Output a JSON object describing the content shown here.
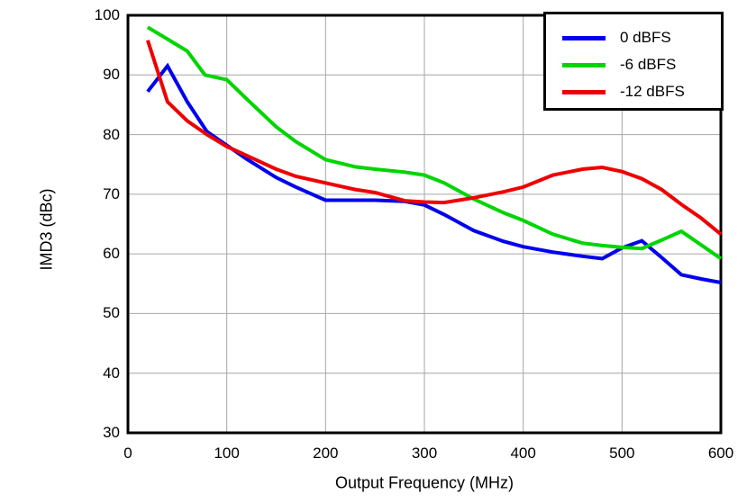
{
  "chart_data": {
    "type": "line",
    "title": "",
    "xlabel": "Output Frequency (MHz)",
    "ylabel": "IMD3 (dBc)",
    "xlim": [
      0,
      600
    ],
    "ylim": [
      30,
      100
    ],
    "x_ticks": [
      0,
      100,
      200,
      300,
      400,
      500,
      600
    ],
    "y_ticks": [
      30,
      40,
      50,
      60,
      70,
      80,
      90,
      100
    ],
    "grid": true,
    "legend_position": "top-right",
    "series": [
      {
        "name": "0 dBFS",
        "color": "#0000EE",
        "points": [
          [
            20,
            87.2
          ],
          [
            40,
            91.5
          ],
          [
            60,
            85.5
          ],
          [
            80,
            80.5
          ],
          [
            100,
            78.2
          ],
          [
            120,
            75.9
          ],
          [
            150,
            72.8
          ],
          [
            170,
            71.2
          ],
          [
            200,
            69.0
          ],
          [
            230,
            69.0
          ],
          [
            250,
            69.0
          ],
          [
            280,
            68.8
          ],
          [
            300,
            68.2
          ],
          [
            320,
            66.6
          ],
          [
            350,
            63.9
          ],
          [
            380,
            62.1
          ],
          [
            400,
            61.2
          ],
          [
            430,
            60.3
          ],
          [
            460,
            59.6
          ],
          [
            480,
            59.2
          ],
          [
            500,
            61.0
          ],
          [
            520,
            62.2
          ],
          [
            540,
            59.4
          ],
          [
            560,
            56.5
          ],
          [
            580,
            55.8
          ],
          [
            600,
            55.2
          ]
        ]
      },
      {
        "name": "-6 dBFS",
        "color": "#00D500",
        "points": [
          [
            20,
            98.0
          ],
          [
            40,
            96.0
          ],
          [
            60,
            94.0
          ],
          [
            78,
            90.0
          ],
          [
            100,
            89.2
          ],
          [
            120,
            86.0
          ],
          [
            150,
            81.3
          ],
          [
            170,
            78.8
          ],
          [
            200,
            75.8
          ],
          [
            230,
            74.6
          ],
          [
            250,
            74.2
          ],
          [
            280,
            73.7
          ],
          [
            300,
            73.2
          ],
          [
            320,
            71.9
          ],
          [
            350,
            69.2
          ],
          [
            380,
            66.9
          ],
          [
            400,
            65.6
          ],
          [
            430,
            63.3
          ],
          [
            460,
            61.8
          ],
          [
            480,
            61.4
          ],
          [
            500,
            61.1
          ],
          [
            520,
            60.9
          ],
          [
            540,
            62.3
          ],
          [
            560,
            63.8
          ],
          [
            580,
            61.5
          ],
          [
            600,
            59.2
          ]
        ]
      },
      {
        "name": "-12 dBFS",
        "color": "#EE0000",
        "points": [
          [
            20,
            95.8
          ],
          [
            40,
            85.5
          ],
          [
            60,
            82.3
          ],
          [
            80,
            80.0
          ],
          [
            100,
            78.0
          ],
          [
            120,
            76.5
          ],
          [
            150,
            74.2
          ],
          [
            170,
            73.0
          ],
          [
            200,
            71.9
          ],
          [
            230,
            70.8
          ],
          [
            250,
            70.3
          ],
          [
            280,
            68.9
          ],
          [
            300,
            68.7
          ],
          [
            320,
            68.6
          ],
          [
            350,
            69.4
          ],
          [
            380,
            70.4
          ],
          [
            400,
            71.2
          ],
          [
            430,
            73.2
          ],
          [
            460,
            74.2
          ],
          [
            480,
            74.5
          ],
          [
            500,
            73.8
          ],
          [
            520,
            72.6
          ],
          [
            540,
            70.8
          ],
          [
            560,
            68.3
          ],
          [
            580,
            66.0
          ],
          [
            600,
            63.3
          ]
        ]
      }
    ]
  },
  "style": {
    "grid_color": "#A6A6A6",
    "axis_color": "#000000",
    "background": "#FFFFFF",
    "line_width": 4,
    "border_width": 3
  }
}
